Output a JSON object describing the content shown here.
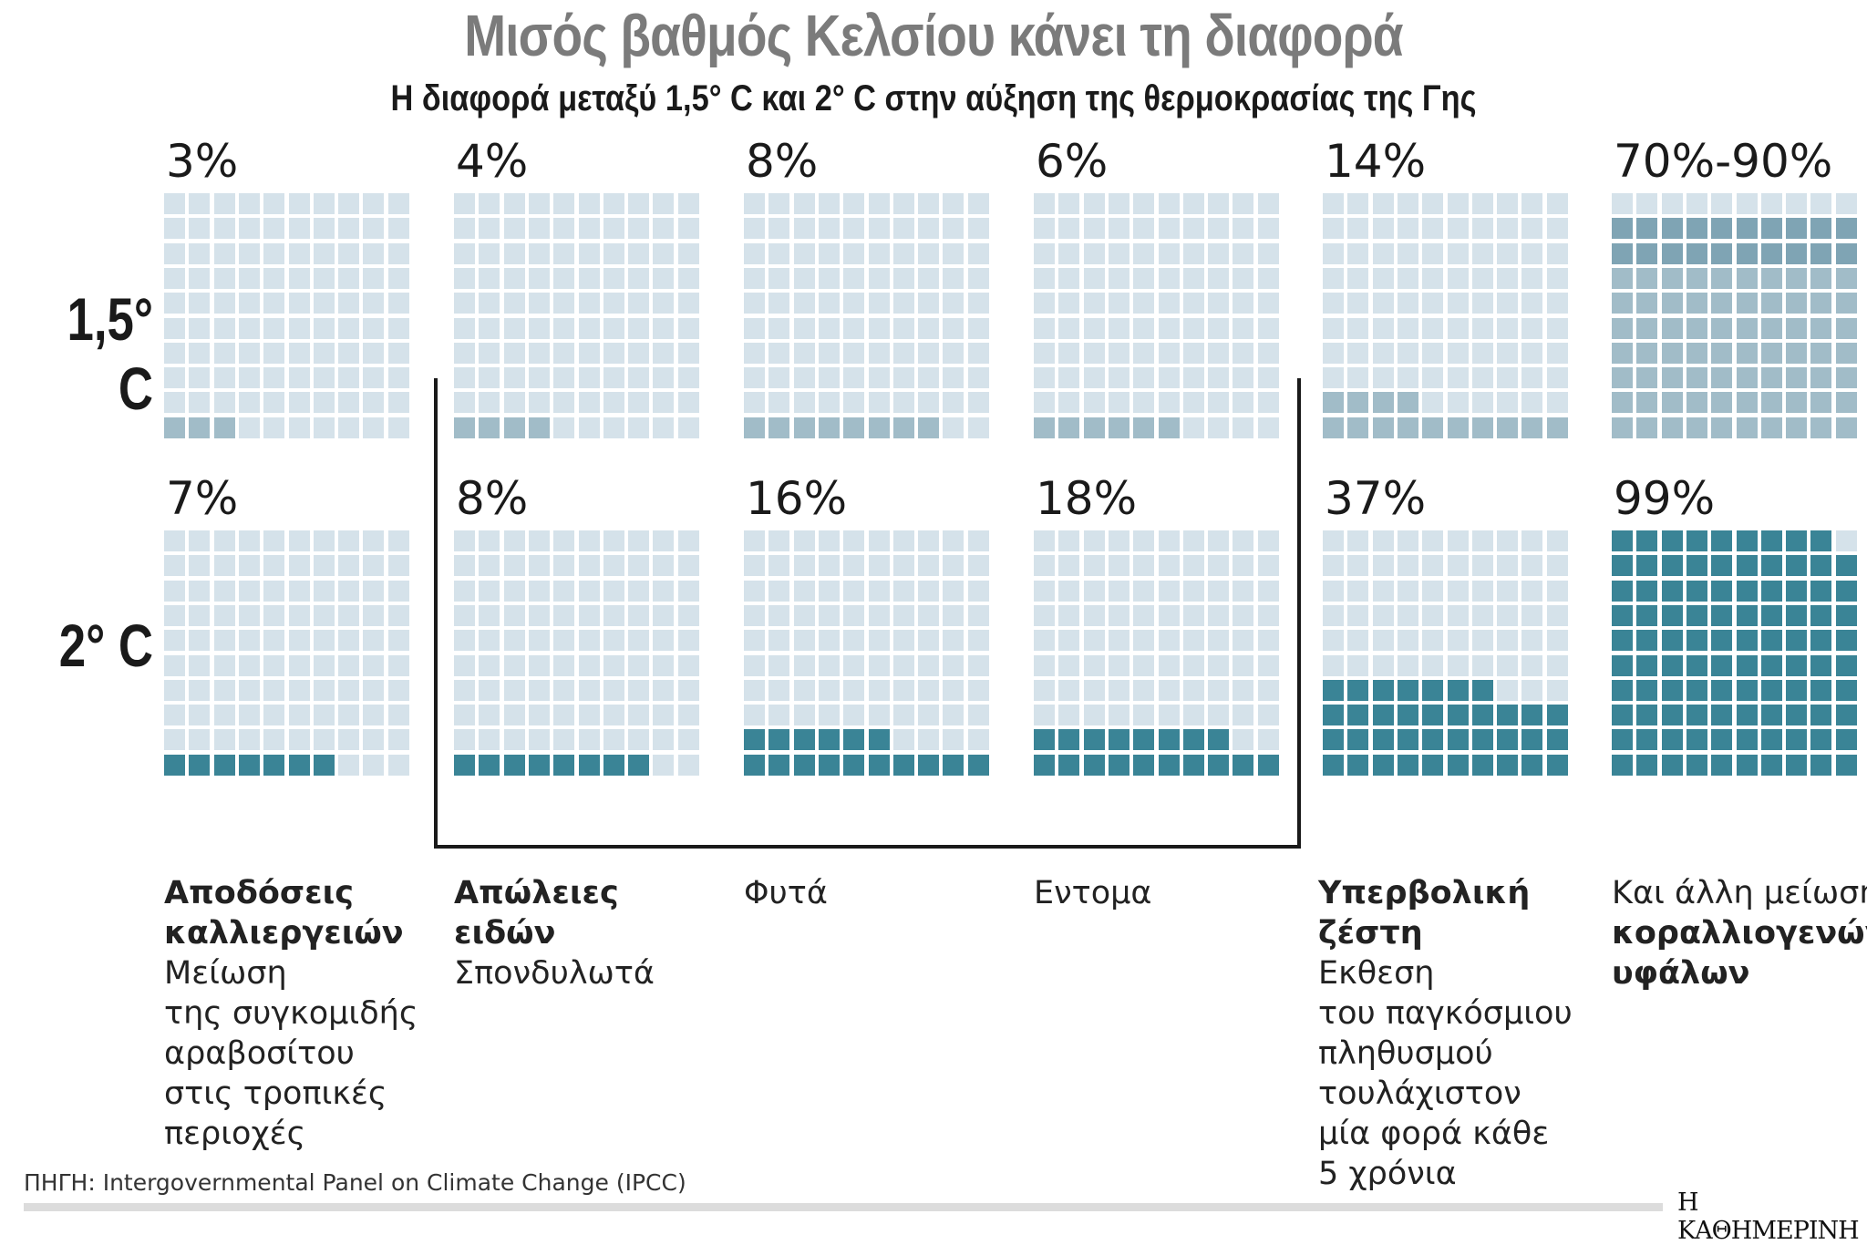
{
  "header": {
    "title": "Μισός βαθμός Κελσίου κάνει τη διαφορά",
    "subtitle": "Η διαφορά μεταξύ 1,5° C και 2° C στην αύξηση της θερμοκρασίας της Γης"
  },
  "row_labels": {
    "low": "1,5° C",
    "high": "2° C"
  },
  "colors": {
    "empty": "#d5e2ea",
    "fill_1_5": "#a1bcc8",
    "fill_1_5_upper": "#7fa4b4",
    "fill_2": "#3a8496",
    "bracket": "#1a1a1a"
  },
  "chart_data": {
    "type": "waffle",
    "title": "Μισός βαθμός Κελσίου κάνει τη διαφορά",
    "subtitle": "Η διαφορά μεταξύ 1,5° C και 2° C στην αύξηση της θερμοκρασίας της Γης",
    "grid": "10x10",
    "columns": [
      {
        "label_1_5": "3%",
        "value_1_5": 3,
        "label_2": "7%",
        "value_2": 7,
        "description": [
          {
            "t": "Αποδόσεις",
            "b": true
          },
          {
            "t": "καλλιεργειών",
            "b": true
          },
          {
            "t": "Μείωση",
            "b": false
          },
          {
            "t": "της συγκομιδής",
            "b": false
          },
          {
            "t": "αραβοσίτου",
            "b": false
          },
          {
            "t": "στις τροπικές",
            "b": false
          },
          {
            "t": "περιοχές",
            "b": false
          }
        ]
      },
      {
        "label_1_5": "4%",
        "value_1_5": 4,
        "label_2": "8%",
        "value_2": 8,
        "description": [
          {
            "t": "Απώλειες",
            "b": true
          },
          {
            "t": "ειδών",
            "b": true
          },
          {
            "t": "Σπονδυλωτά",
            "b": false
          }
        ]
      },
      {
        "label_1_5": "8%",
        "value_1_5": 8,
        "label_2": "16%",
        "value_2": 16,
        "description": [
          {
            "t": "Φυτά",
            "b": false
          }
        ]
      },
      {
        "label_1_5": "6%",
        "value_1_5": 6,
        "label_2": "18%",
        "value_2": 18,
        "description": [
          {
            "t": "Εντομα",
            "b": false
          }
        ]
      },
      {
        "label_1_5": "14%",
        "value_1_5": 14,
        "label_2": "37%",
        "value_2": 37,
        "description": [
          {
            "t": "Υπερβολική",
            "b": true
          },
          {
            "t": "ζέστη",
            "b": true
          },
          {
            "t": "Εκθεση",
            "b": false
          },
          {
            "t": "του παγκόσμιου",
            "b": false
          },
          {
            "t": "πληθυσμού",
            "b": false
          },
          {
            "t": "τουλάχιστον",
            "b": false
          },
          {
            "t": "μία φορά κάθε",
            "b": false
          },
          {
            "t": "5 χρόνια",
            "b": false
          }
        ]
      },
      {
        "label_1_5": "70%-90%",
        "value_1_5": [
          70,
          90
        ],
        "label_2": "99%",
        "value_2": 99,
        "description": [
          {
            "t": "Και άλλη μείωση",
            "b": false
          },
          {
            "t": "κοραλλιογενών",
            "b": true
          },
          {
            "t": "υφάλων",
            "b": true
          }
        ]
      }
    ]
  },
  "footer": {
    "source": "ΠΗΓΗ: Intergovernmental Panel on Climate Change (IPCC)",
    "logo": "Η ΚΑΘΗΜΕΡΙΝΗ"
  }
}
